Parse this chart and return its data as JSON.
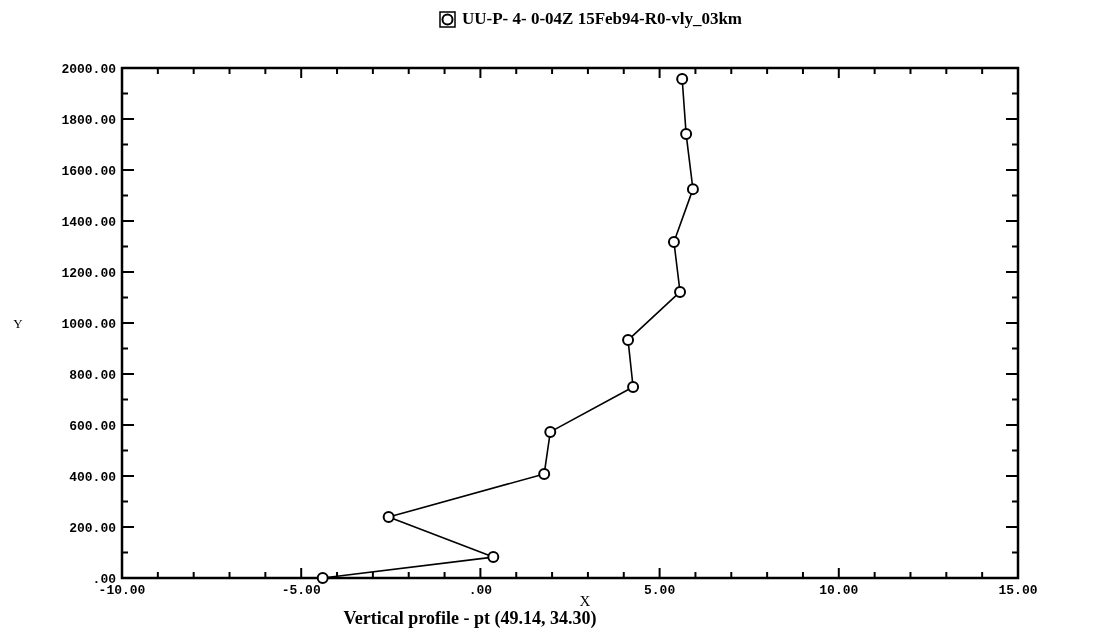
{
  "chart_data": {
    "type": "line",
    "xlabel": "X",
    "ylabel": "Y",
    "annotations": [
      "Vertical profile - pt (49.14, 34.30)"
    ],
    "legend": "top",
    "marker": "circle",
    "line_style": "solid",
    "grid": false,
    "xlim": [
      -10,
      15
    ],
    "ylim": [
      0,
      2000
    ],
    "xticks": [
      {
        "value": -10,
        "label": "-10.00"
      },
      {
        "value": -9,
        "label": null
      },
      {
        "value": -8,
        "label": null
      },
      {
        "value": -7,
        "label": null
      },
      {
        "value": -6,
        "label": null
      },
      {
        "value": -5,
        "label": "-5.00"
      },
      {
        "value": -4,
        "label": null
      },
      {
        "value": -3,
        "label": null
      },
      {
        "value": -2,
        "label": null
      },
      {
        "value": -1,
        "label": null
      },
      {
        "value": 0,
        "label": ".00"
      },
      {
        "value": 1,
        "label": null
      },
      {
        "value": 2,
        "label": null
      },
      {
        "value": 3,
        "label": null
      },
      {
        "value": 4,
        "label": null
      },
      {
        "value": 5,
        "label": "5.00"
      },
      {
        "value": 6,
        "label": null
      },
      {
        "value": 7,
        "label": null
      },
      {
        "value": 8,
        "label": null
      },
      {
        "value": 9,
        "label": null
      },
      {
        "value": 10,
        "label": "10.00"
      },
      {
        "value": 11,
        "label": null
      },
      {
        "value": 12,
        "label": null
      },
      {
        "value": 13,
        "label": null
      },
      {
        "value": 14,
        "label": null
      },
      {
        "value": 15,
        "label": "15.00"
      }
    ],
    "yticks": [
      {
        "value": 0,
        "label": ".00"
      },
      {
        "value": 100,
        "label": null
      },
      {
        "value": 200,
        "label": "200.00"
      },
      {
        "value": 300,
        "label": null
      },
      {
        "value": 400,
        "label": "400.00"
      },
      {
        "value": 500,
        "label": null
      },
      {
        "value": 600,
        "label": "600.00"
      },
      {
        "value": 700,
        "label": null
      },
      {
        "value": 800,
        "label": "800.00"
      },
      {
        "value": 900,
        "label": null
      },
      {
        "value": 1000,
        "label": "1000.00"
      },
      {
        "value": 1100,
        "label": null
      },
      {
        "value": 1200,
        "label": "1200.00"
      },
      {
        "value": 1300,
        "label": null
      },
      {
        "value": 1400,
        "label": "1400.00"
      },
      {
        "value": 1500,
        "label": null
      },
      {
        "value": 1600,
        "label": "1600.00"
      },
      {
        "value": 1700,
        "label": null
      },
      {
        "value": 1800,
        "label": "1800.00"
      },
      {
        "value": 1900,
        "label": null
      },
      {
        "value": 2000,
        "label": "2000.00"
      }
    ],
    "series": [
      {
        "name": "UU-P- 4- 0-04Z 15Feb94-R0-vly_03km",
        "color": "#000000",
        "x": [
          -4.4,
          0.36,
          -2.56,
          1.78,
          1.95,
          4.26,
          4.12,
          5.57,
          5.4,
          5.93,
          5.74,
          5.63
        ],
        "values": [
          0,
          82,
          239,
          408,
          573,
          749,
          933,
          1122,
          1318,
          1525,
          1741,
          1957
        ]
      }
    ]
  }
}
